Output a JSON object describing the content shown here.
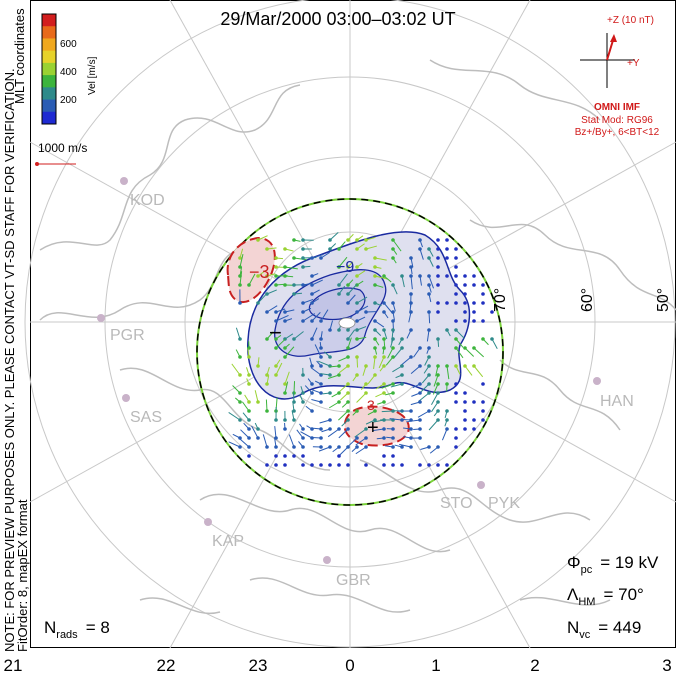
{
  "title": "29/Mar/2000 03:00–03:02 UT",
  "side_note_1": "NOTE: FOR PREVIEW PURPOSES ONLY. PLEASE CONTACT VT-SD STAFF FOR VERIFICATION.",
  "side_note_2": "FitOrder: 8, mapEX format",
  "coord_label": "MLT coordinates",
  "colorbar": {
    "label": "Vel [m/s]",
    "ticks": [
      "600",
      "400",
      "200"
    ],
    "colors": [
      "#d21e1e",
      "#e86a1a",
      "#f0a81e",
      "#e6d22a",
      "#9ad232",
      "#3cb43c",
      "#2e8a8a",
      "#2a5cb4",
      "#1e2ad2"
    ]
  },
  "ref_vector": "1000 m/s",
  "imf": {
    "z_label": "+Z (10 nT)",
    "y_label": "+Y",
    "source": "OMNI IMF",
    "model": "Stat Mod: RG96",
    "model_params": "Bz+/By+, 6<BT<12",
    "color": "#d01818"
  },
  "stations": [
    "KOD",
    "PGR",
    "SAS",
    "KAP",
    "GBR",
    "STO",
    "PYK",
    "HAN"
  ],
  "lat_labels": [
    "70°",
    "60°",
    "50°"
  ],
  "mlt_labels": [
    "21",
    "22",
    "23",
    "0",
    "1",
    "2",
    "3"
  ],
  "contours": {
    "neg_label": "−",
    "pos_label": "+",
    "c1_label": "−3",
    "c2_label": "3",
    "c3_label": "−9",
    "neg_color": "#1a2aa0",
    "pos_color": "#c82020"
  },
  "stats": {
    "phi_label": "Φ",
    "phi_sub": "pc",
    "phi_value": "= 19 kV",
    "lambda_label": "Λ",
    "lambda_sub": "HM",
    "lambda_value": "= 70°",
    "nvc_label": "N",
    "nvc_sub": "vc",
    "nvc_value": "= 449",
    "nrads_label": "N",
    "nrads_sub": "rads",
    "nrads_value": "= 8"
  }
}
